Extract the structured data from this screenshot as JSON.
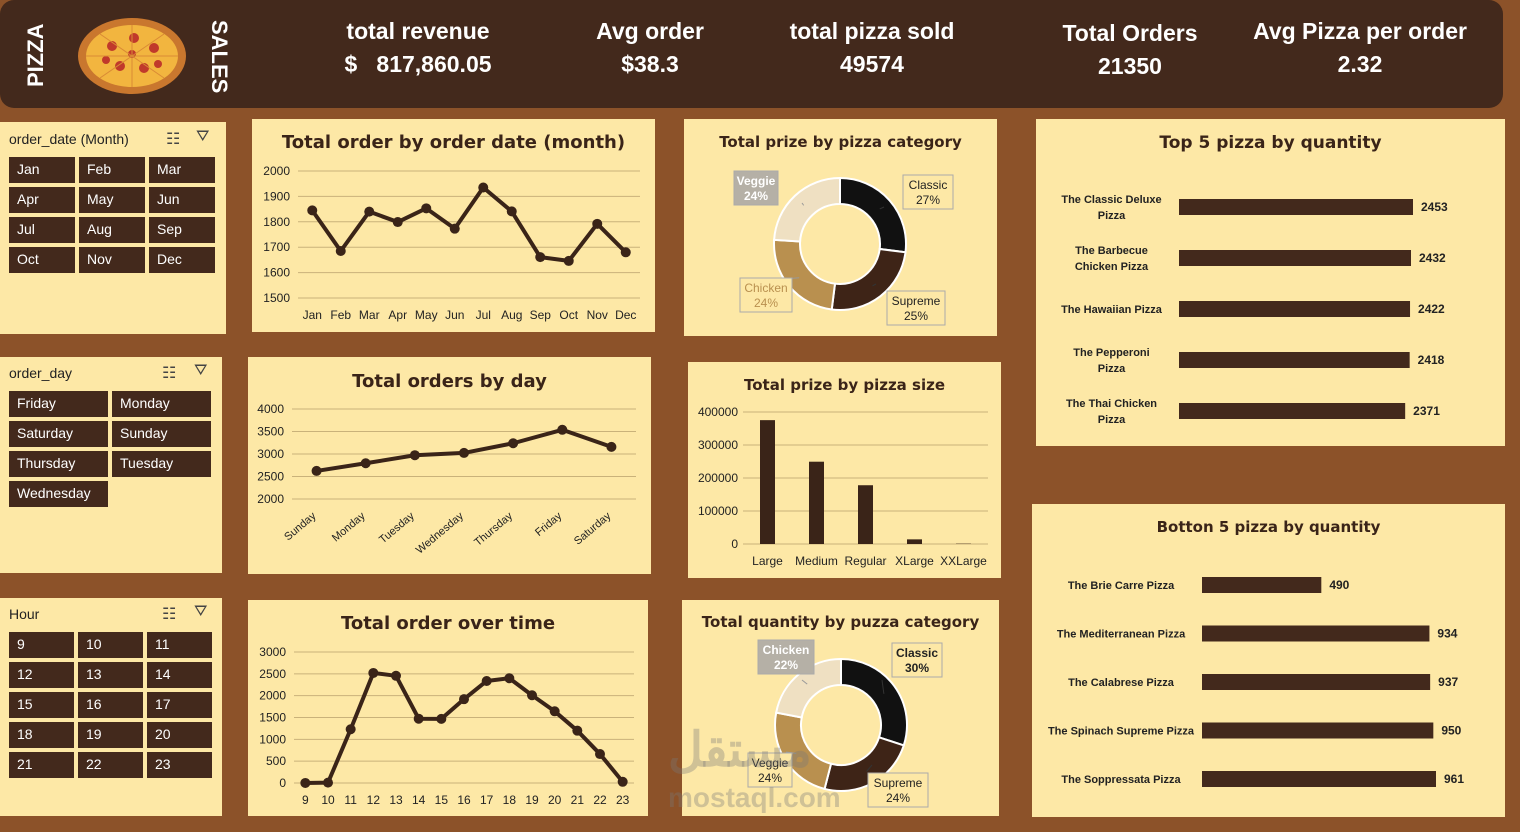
{
  "header": {
    "pizza_label": "PIZZA",
    "sales_label": "SALES",
    "kpis": [
      {
        "label": "total revenue",
        "value": "$   817,860.05"
      },
      {
        "label": "Avg order",
        "value": "$38.3"
      },
      {
        "label": "total pizza sold",
        "value": "49574"
      },
      {
        "label": "Total Orders",
        "value": "21350"
      },
      {
        "label": "Avg Pizza per order",
        "value": "2.32"
      }
    ]
  },
  "slicers": {
    "month": {
      "title": "order_date (Month)",
      "items": [
        "Jan",
        "Feb",
        "Mar",
        "Apr",
        "May",
        "Jun",
        "Jul",
        "Aug",
        "Sep",
        "Oct",
        "Nov",
        "Dec"
      ]
    },
    "day": {
      "title": "order_day",
      "items": [
        "Friday",
        "Monday",
        "Saturday",
        "Sunday",
        "Thursday",
        "Tuesday",
        "Wednesday"
      ]
    },
    "hour": {
      "title": "Hour",
      "items": [
        "9",
        "10",
        "11",
        "12",
        "13",
        "14",
        "15",
        "16",
        "17",
        "18",
        "19",
        "20",
        "21",
        "22",
        "23"
      ]
    }
  },
  "watermark": {
    "arabic": "مستقل",
    "latin": "mostaql.com"
  },
  "chart_data": [
    {
      "id": "orders-by-month",
      "type": "line",
      "title": "Total order by order date (month)",
      "categories": [
        "Jan",
        "Feb",
        "Mar",
        "Apr",
        "May",
        "Jun",
        "Jul",
        "Aug",
        "Sep",
        "Oct",
        "Nov",
        "Dec"
      ],
      "values": [
        1845,
        1685,
        1840,
        1799,
        1853,
        1773,
        1935,
        1841,
        1661,
        1646,
        1792,
        1680
      ],
      "yticks": [
        1500,
        1600,
        1700,
        1800,
        1900,
        2000
      ],
      "ylim": [
        1500,
        2000
      ],
      "grid": true,
      "color": "#3a2418"
    },
    {
      "id": "price-by-category",
      "type": "pie",
      "title": "Total prize by pizza category",
      "slices": [
        {
          "label": "Classic",
          "pct": "27%",
          "value": 27,
          "color": "#111111"
        },
        {
          "label": "Supreme",
          "pct": "25%",
          "value": 25,
          "color": "#3e2417"
        },
        {
          "label": "Chicken",
          "pct": "24%",
          "value": 24,
          "color": "#b9904f"
        },
        {
          "label": "Veggie",
          "pct": "24%",
          "value": 24,
          "color": "#efe0c2"
        }
      ]
    },
    {
      "id": "top5-quantity",
      "type": "bar",
      "title": "Top 5 pizza by quantity",
      "categories": [
        "The Classic Deluxe Pizza",
        "The Barbecue Chicken Pizza",
        "The Hawaiian Pizza",
        "The Pepperoni Pizza",
        "The Thai Chicken Pizza"
      ],
      "values": [
        2453,
        2432,
        2422,
        2418,
        2371
      ],
      "color": "#43291c"
    },
    {
      "id": "orders-by-day",
      "type": "line",
      "title": "Total orders by day",
      "categories": [
        "Sunday",
        "Monday",
        "Tuesday",
        "Wednesday",
        "Thursday",
        "Friday",
        "Saturday"
      ],
      "values": [
        2624,
        2794,
        2973,
        3024,
        3239,
        3538,
        3158
      ],
      "yticks": [
        2000,
        2500,
        3000,
        3500,
        4000
      ],
      "ylim": [
        2000,
        4000
      ],
      "grid": true,
      "color": "#3a2418"
    },
    {
      "id": "price-by-size",
      "type": "bar",
      "title": "Total prize by pizza size",
      "categories": [
        "Large",
        "Medium",
        "Regular",
        "XLarge",
        "XXLarge"
      ],
      "values": [
        375318,
        249382,
        178076,
        14076,
        1007
      ],
      "yticks": [
        0,
        100000,
        200000,
        300000,
        400000
      ],
      "ylim": [
        0,
        400000
      ],
      "grid": true,
      "color": "#3a2418"
    },
    {
      "id": "bottom5-quantity",
      "type": "bar",
      "title": "Botton 5 pizza by quantity",
      "categories": [
        "The Brie Carre Pizza",
        "The Mediterranean Pizza",
        "The Calabrese Pizza",
        "The Spinach Supreme Pizza",
        "The Soppressata Pizza"
      ],
      "values": [
        490,
        934,
        937,
        950,
        961
      ],
      "color": "#43291c"
    },
    {
      "id": "orders-by-hour",
      "type": "line",
      "title": "Total order over time",
      "categories": [
        "9",
        "10",
        "11",
        "12",
        "13",
        "14",
        "15",
        "16",
        "17",
        "18",
        "19",
        "20",
        "21",
        "22",
        "23"
      ],
      "values": [
        1,
        8,
        1231,
        2520,
        2455,
        1472,
        1468,
        1920,
        2336,
        2399,
        2009,
        1642,
        1198,
        663,
        28
      ],
      "yticks": [
        0,
        500,
        1000,
        1500,
        2000,
        2500,
        3000
      ],
      "ylim": [
        0,
        3000
      ],
      "grid": true,
      "color": "#3a2418"
    },
    {
      "id": "quantity-by-category",
      "type": "pie",
      "title": "Total quantity by puzza category",
      "slices": [
        {
          "label": "Classic",
          "pct": "30%",
          "value": 30,
          "color": "#111111"
        },
        {
          "label": "Supreme",
          "pct": "24%",
          "value": 24,
          "color": "#3e2417"
        },
        {
          "label": "Veggie",
          "pct": "24%",
          "value": 24,
          "color": "#b9904f"
        },
        {
          "label": "Chicken",
          "pct": "22%",
          "value": 22,
          "color": "#efe0c2"
        }
      ]
    }
  ]
}
